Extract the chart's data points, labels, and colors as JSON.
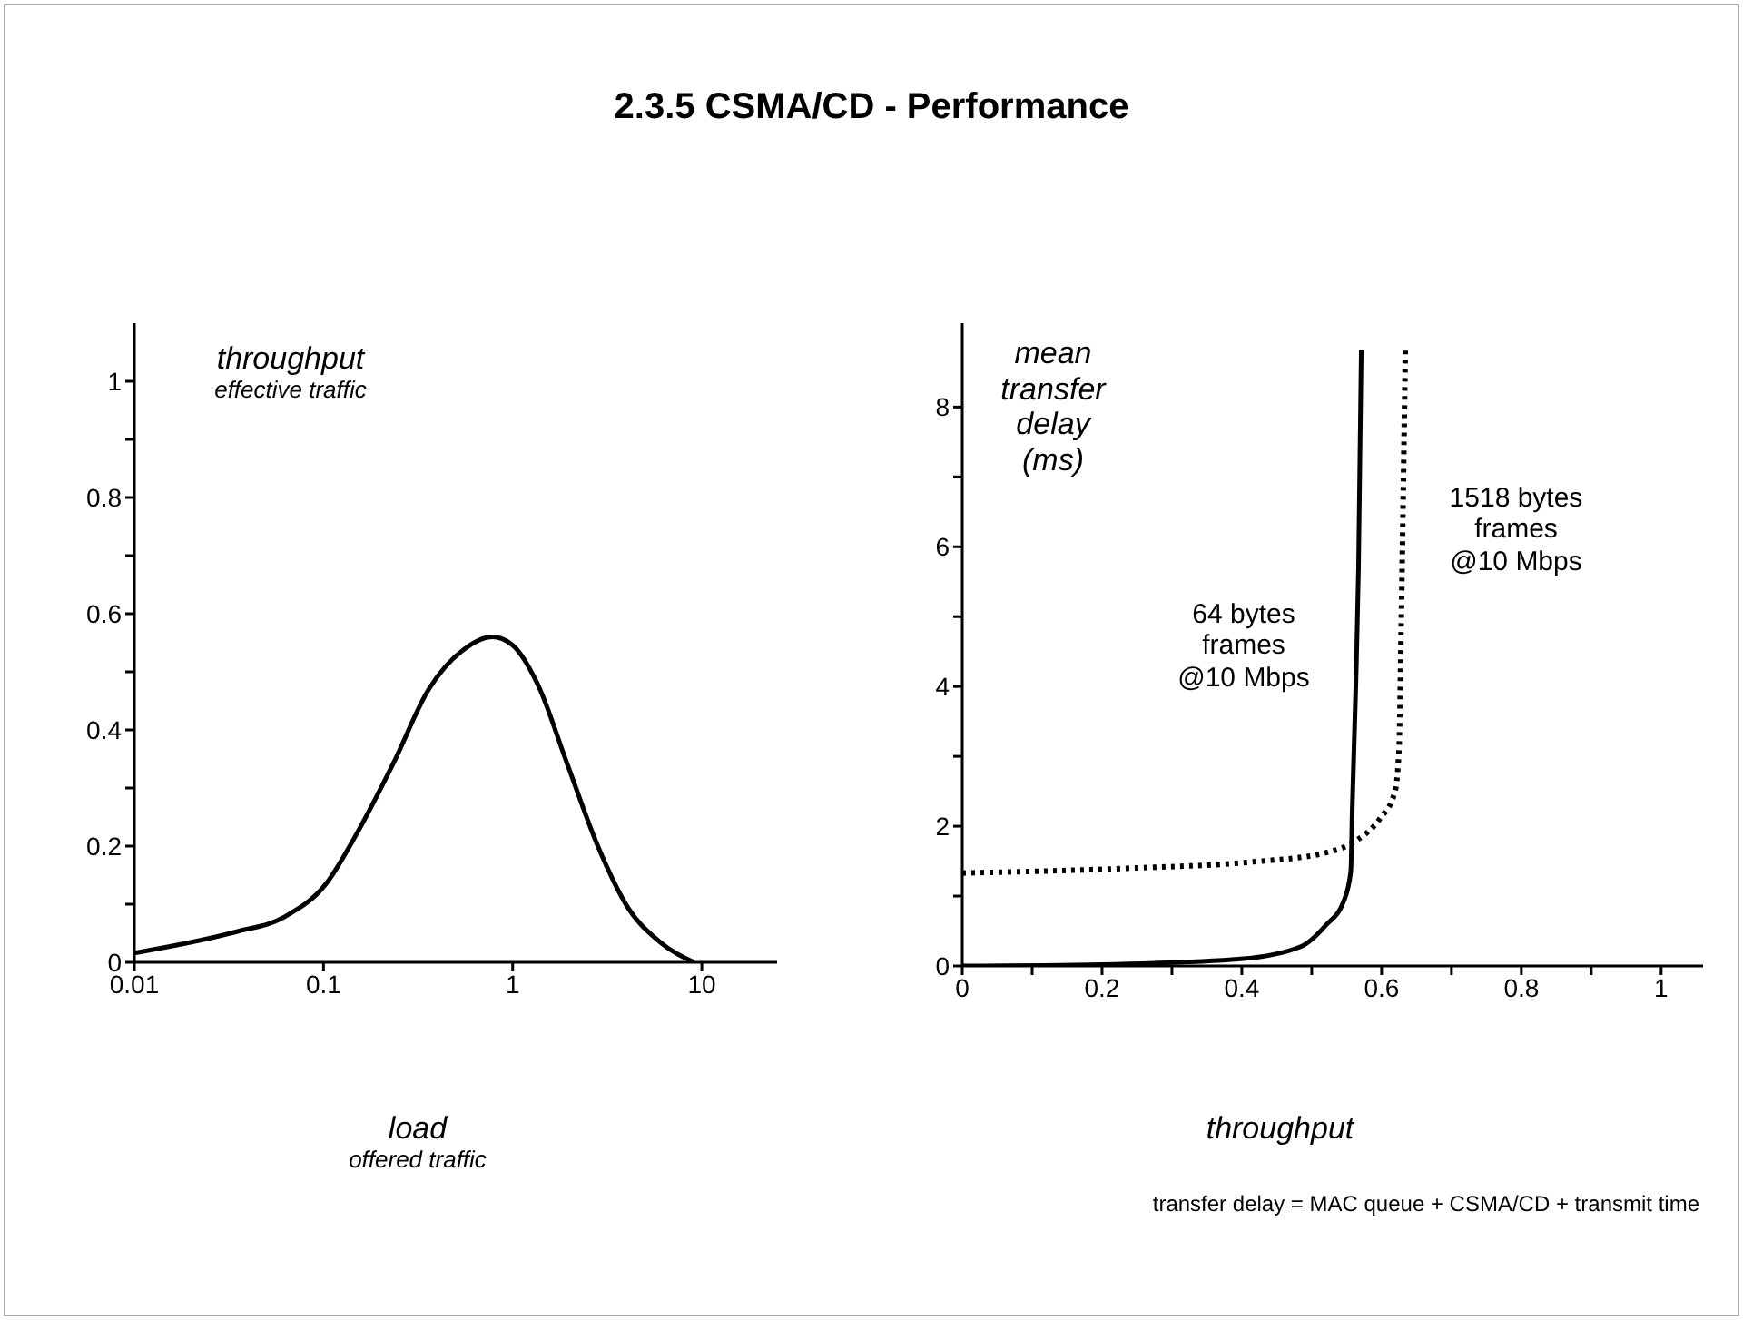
{
  "chart_data": [
    {
      "type": "line",
      "title": "2.3.5 CSMA/CD - Performance",
      "xlabel": "load\noffered traffic",
      "ylabel": "throughput\neffective traffic",
      "log": "x",
      "xlim": [
        0.01,
        25
      ],
      "xticks": [
        0.01,
        0.1,
        1,
        10
      ],
      "ylim": [
        0,
        1.1
      ],
      "yticks": [
        0,
        {
          "value": 0.1,
          "label": null
        },
        0.2,
        {
          "value": 0.3,
          "label": null
        },
        0.4,
        {
          "value": 0.5,
          "label": null
        },
        0.6,
        {
          "value": 0.7,
          "label": null
        },
        0.8,
        {
          "value": 0.9,
          "label": null
        },
        1
      ],
      "grid": false,
      "legend": false,
      "marker": "none",
      "series": [
        {
          "color": "#000000",
          "line_style": "solid",
          "x": [
            0.01,
            0.034,
            0.062,
            0.103,
            0.149,
            0.232,
            0.36,
            0.56,
            0.78,
            0.99,
            1.35,
            1.95,
            2.82,
            4.07,
            5.9,
            9.1
          ],
          "values": [
            0.016,
            0.052,
            0.078,
            0.135,
            0.22,
            0.34,
            0.47,
            0.54,
            0.56,
            0.547,
            0.48,
            0.34,
            0.2,
            0.094,
            0.037,
            0
          ]
        }
      ]
    },
    {
      "type": "line",
      "xlabel": "throughput",
      "ylabel": "mean\ntransfer\ndelay\n(ms)",
      "xlim": [
        0,
        1.06
      ],
      "xticks": [
        0,
        {
          "value": 0.1,
          "label": null
        },
        0.2,
        {
          "value": 0.3,
          "label": null
        },
        0.4,
        {
          "value": 0.5,
          "label": null
        },
        0.6,
        {
          "value": 0.7,
          "label": null
        },
        0.8,
        {
          "value": 0.9,
          "label": null
        },
        1
      ],
      "ylim": [
        0,
        9.2
      ],
      "yticks": [
        0,
        {
          "value": 1,
          "label": null
        },
        2,
        {
          "value": 3,
          "label": null
        },
        4,
        {
          "value": 5,
          "label": null
        },
        6,
        {
          "value": 7,
          "label": null
        },
        8
      ],
      "grid": false,
      "legend": false,
      "marker": "none",
      "annotations": [
        "transfer delay = MAC queue + CSMA/CD + transmit time"
      ],
      "series": [
        {
          "name": "64 bytes\nframes\n@10 Mbps",
          "color": "#000000",
          "line_style": "solid",
          "x": [
            0,
            0.2,
            0.398,
            0.485,
            0.52,
            0.546,
            0.556,
            0.558,
            0.563,
            0.567,
            0.571
          ],
          "values": [
            0,
            0.02,
            0.1,
            0.28,
            0.58,
            0.93,
            1.36,
            2.23,
            3.96,
            5.7,
            8.82
          ]
        },
        {
          "name": "1518 bytes\nframes\n@10 Mbps",
          "color": "#000000",
          "line_style": "dotted",
          "x": [
            0,
            0.242,
            0.416,
            0.52,
            0.563,
            0.597,
            0.619,
            0.625,
            0.628,
            0.632,
            0.634
          ],
          "values": [
            1.33,
            1.4,
            1.49,
            1.62,
            1.79,
            2.1,
            2.49,
            3.1,
            4.83,
            7.42,
            8.82
          ]
        }
      ]
    }
  ]
}
